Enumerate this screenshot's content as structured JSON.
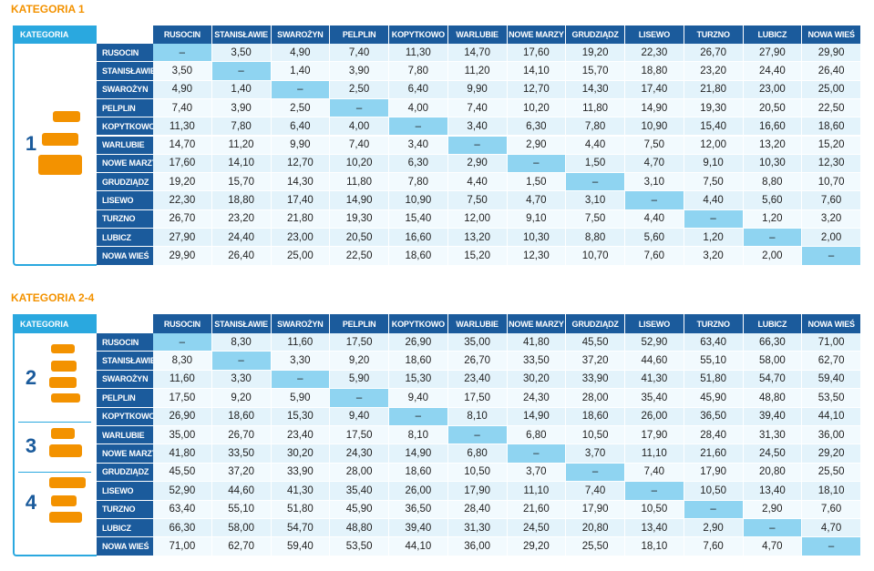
{
  "sections": [
    {
      "title": "KATEGORIA 1",
      "corner_label": "KATEGORIA",
      "columns": [
        "RUSOCIN",
        "STANISŁAWIE",
        "SWAROŻYN",
        "PELPLIN",
        "KOPYTKOWO",
        "WARLUBIE",
        "NOWE MARZY",
        "GRUDZIĄDZ",
        "LISEWO",
        "TURZNO",
        "LUBICZ",
        "NOWA WIEŚ"
      ],
      "groups": [
        "1"
      ],
      "rows": [
        {
          "label": "RUSOCIN",
          "cells": [
            "–",
            "3,50",
            "4,90",
            "7,40",
            "11,30",
            "14,70",
            "17,60",
            "19,20",
            "22,30",
            "26,70",
            "27,90",
            "29,90"
          ]
        },
        {
          "label": "STANISŁAWIE",
          "cells": [
            "3,50",
            "–",
            "1,40",
            "3,90",
            "7,80",
            "11,20",
            "14,10",
            "15,70",
            "18,80",
            "23,20",
            "24,40",
            "26,40"
          ]
        },
        {
          "label": "SWAROŻYN",
          "cells": [
            "4,90",
            "1,40",
            "–",
            "2,50",
            "6,40",
            "9,90",
            "12,70",
            "14,30",
            "17,40",
            "21,80",
            "23,00",
            "25,00"
          ]
        },
        {
          "label": "PELPLIN",
          "cells": [
            "7,40",
            "3,90",
            "2,50",
            "–",
            "4,00",
            "7,40",
            "10,20",
            "11,80",
            "14,90",
            "19,30",
            "20,50",
            "22,50"
          ]
        },
        {
          "label": "KOPYTKOWO",
          "cells": [
            "11,30",
            "7,80",
            "6,40",
            "4,00",
            "–",
            "3,40",
            "6,30",
            "7,80",
            "10,90",
            "15,40",
            "16,60",
            "18,60"
          ]
        },
        {
          "label": "WARLUBIE",
          "cells": [
            "14,70",
            "11,20",
            "9,90",
            "7,40",
            "3,40",
            "–",
            "2,90",
            "4,40",
            "7,50",
            "12,00",
            "13,20",
            "15,20"
          ]
        },
        {
          "label": "NOWE MARZY",
          "cells": [
            "17,60",
            "14,10",
            "12,70",
            "10,20",
            "6,30",
            "2,90",
            "–",
            "1,50",
            "4,70",
            "9,10",
            "10,30",
            "12,30"
          ]
        },
        {
          "label": "GRUDZIĄDZ",
          "cells": [
            "19,20",
            "15,70",
            "14,30",
            "11,80",
            "7,80",
            "4,40",
            "1,50",
            "–",
            "3,10",
            "7,50",
            "8,80",
            "10,70"
          ]
        },
        {
          "label": "LISEWO",
          "cells": [
            "22,30",
            "18,80",
            "17,40",
            "14,90",
            "10,90",
            "7,50",
            "4,70",
            "3,10",
            "–",
            "4,40",
            "5,60",
            "7,60"
          ]
        },
        {
          "label": "TURZNO",
          "cells": [
            "26,70",
            "23,20",
            "21,80",
            "19,30",
            "15,40",
            "12,00",
            "9,10",
            "7,50",
            "4,40",
            "–",
            "1,20",
            "3,20"
          ]
        },
        {
          "label": "LUBICZ",
          "cells": [
            "27,90",
            "24,40",
            "23,00",
            "20,50",
            "16,60",
            "13,20",
            "10,30",
            "8,80",
            "5,60",
            "1,20",
            "–",
            "2,00"
          ]
        },
        {
          "label": "NOWA WIEŚ",
          "cells": [
            "29,90",
            "26,40",
            "25,00",
            "22,50",
            "18,60",
            "15,20",
            "12,30",
            "10,70",
            "7,60",
            "3,20",
            "2,00",
            "–"
          ]
        }
      ]
    },
    {
      "title": "KATEGORIA 2-4",
      "corner_label": "KATEGORIA",
      "columns": [
        "RUSOCIN",
        "STANISŁAWIE",
        "SWAROŻYN",
        "PELPLIN",
        "KOPYTKOWO",
        "WARLUBIE",
        "NOWE MARZY",
        "GRUDZIĄDZ",
        "LISEWO",
        "TURZNO",
        "LUBICZ",
        "NOWA WIEŚ"
      ],
      "groups": [
        "2",
        "3",
        "4"
      ],
      "rows": [
        {
          "label": "RUSOCIN",
          "cells": [
            "–",
            "8,30",
            "11,60",
            "17,50",
            "26,90",
            "35,00",
            "41,80",
            "45,50",
            "52,90",
            "63,40",
            "66,30",
            "71,00"
          ]
        },
        {
          "label": "STANISŁAWIE",
          "cells": [
            "8,30",
            "–",
            "3,30",
            "9,20",
            "18,60",
            "26,70",
            "33,50",
            "37,20",
            "44,60",
            "55,10",
            "58,00",
            "62,70"
          ]
        },
        {
          "label": "SWAROŻYN",
          "cells": [
            "11,60",
            "3,30",
            "–",
            "5,90",
            "15,30",
            "23,40",
            "30,20",
            "33,90",
            "41,30",
            "51,80",
            "54,70",
            "59,40"
          ]
        },
        {
          "label": "PELPLIN",
          "cells": [
            "17,50",
            "9,20",
            "5,90",
            "–",
            "9,40",
            "17,50",
            "24,30",
            "28,00",
            "35,40",
            "45,90",
            "48,80",
            "53,50"
          ]
        },
        {
          "label": "KOPYTKOWO",
          "cells": [
            "26,90",
            "18,60",
            "15,30",
            "9,40",
            "–",
            "8,10",
            "14,90",
            "18,60",
            "26,00",
            "36,50",
            "39,40",
            "44,10"
          ]
        },
        {
          "label": "WARLUBIE",
          "cells": [
            "35,00",
            "26,70",
            "23,40",
            "17,50",
            "8,10",
            "–",
            "6,80",
            "10,50",
            "17,90",
            "28,40",
            "31,30",
            "36,00"
          ]
        },
        {
          "label": "NOWE MARZY",
          "cells": [
            "41,80",
            "33,50",
            "30,20",
            "24,30",
            "14,90",
            "6,80",
            "–",
            "3,70",
            "11,10",
            "21,60",
            "24,50",
            "29,20"
          ]
        },
        {
          "label": "GRUDZIĄDZ",
          "cells": [
            "45,50",
            "37,20",
            "33,90",
            "28,00",
            "18,60",
            "10,50",
            "3,70",
            "–",
            "7,40",
            "17,90",
            "20,80",
            "25,50"
          ]
        },
        {
          "label": "LISEWO",
          "cells": [
            "52,90",
            "44,60",
            "41,30",
            "35,40",
            "26,00",
            "17,90",
            "11,10",
            "7,40",
            "–",
            "10,50",
            "13,40",
            "18,10"
          ]
        },
        {
          "label": "TURZNO",
          "cells": [
            "63,40",
            "55,10",
            "51,80",
            "45,90",
            "36,50",
            "28,40",
            "21,60",
            "17,90",
            "10,50",
            "–",
            "2,90",
            "7,60"
          ]
        },
        {
          "label": "LUBICZ",
          "cells": [
            "66,30",
            "58,00",
            "54,70",
            "48,80",
            "39,40",
            "31,30",
            "24,50",
            "20,80",
            "13,40",
            "2,90",
            "–",
            "4,70"
          ]
        },
        {
          "label": "NOWA WIEŚ",
          "cells": [
            "71,00",
            "62,70",
            "59,40",
            "53,50",
            "44,10",
            "36,00",
            "29,20",
            "25,50",
            "18,10",
            "7,60",
            "4,70",
            "–"
          ]
        }
      ]
    }
  ]
}
